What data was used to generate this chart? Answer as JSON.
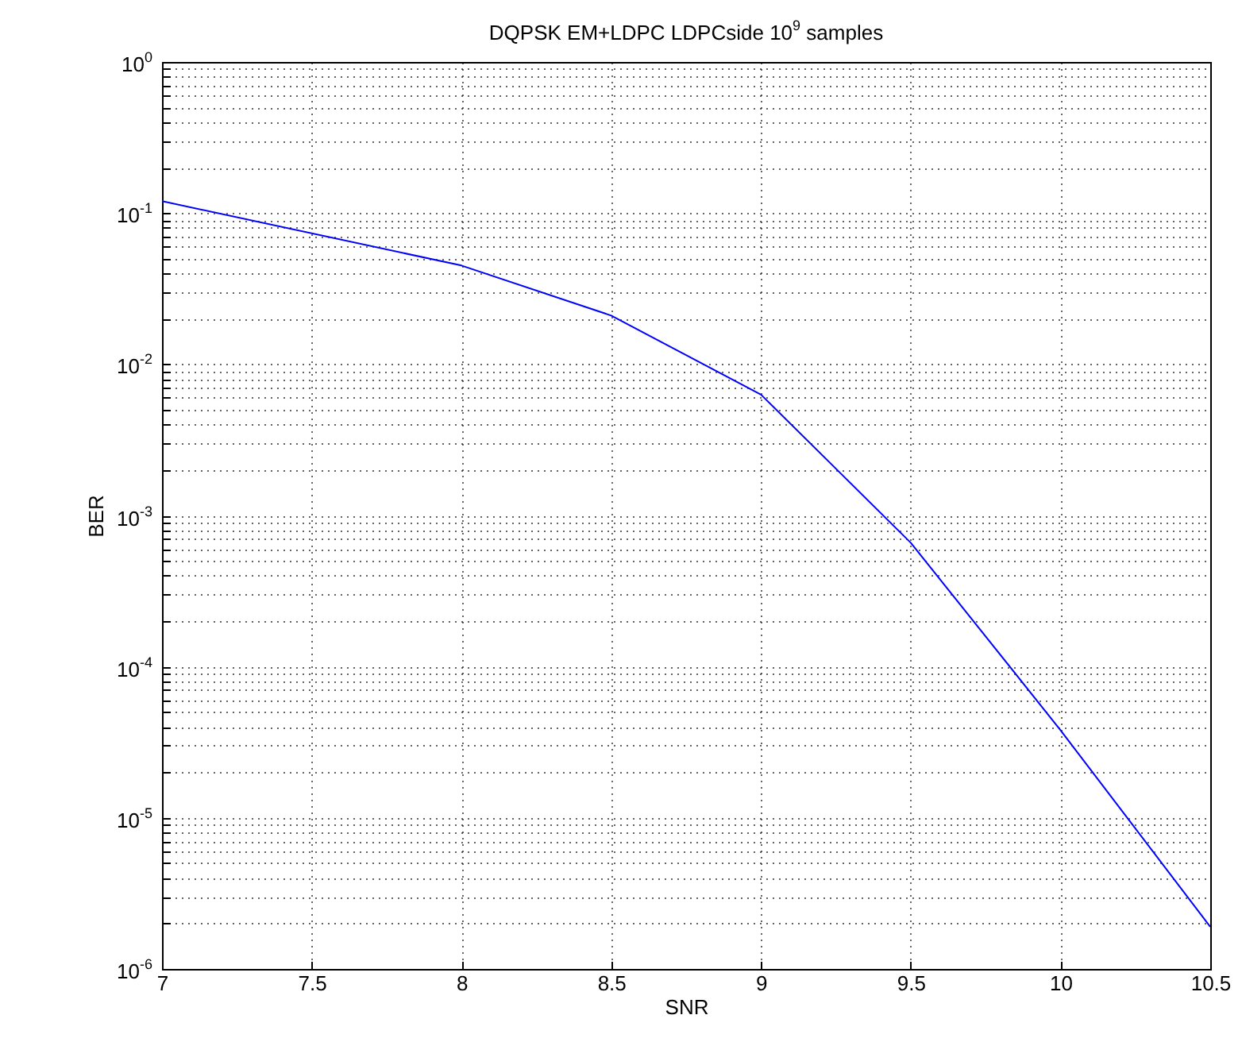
{
  "chart_data": {
    "type": "line",
    "title": "DQPSK EM+LDPC LDPCside 10$^{9}$ samples",
    "xlabel": "SNR",
    "ylabel": "BER",
    "x": [
      7,
      7.5,
      8,
      8.5,
      9,
      9.5,
      10,
      10.5
    ],
    "series": [
      {
        "color": "#0000ff",
        "values": [
          0.12,
          null,
          0.045,
          0.021,
          0.0063,
          0.00066,
          3.8e-05,
          1.9e-06
        ]
      }
    ],
    "log": true,
    "grid": true,
    "marker": "none",
    "line_style": "solid",
    "xlim": [
      7,
      10.5
    ],
    "xticks": [
      7,
      7.5,
      8,
      8.5,
      9,
      9.5,
      10,
      10.5
    ],
    "ylim": [
      1e-06,
      1
    ],
    "yticks": [
      {
        "value": 1e-06,
        "label": "10$^{-6}$"
      },
      {
        "value": 2e-06,
        "label": null
      },
      {
        "value": 3e-06,
        "label": null
      },
      {
        "value": 4e-06,
        "label": null
      },
      {
        "value": 5e-06,
        "label": null
      },
      {
        "value": 6e-06,
        "label": null
      },
      {
        "value": 7e-06,
        "label": null
      },
      {
        "value": 8e-06,
        "label": null
      },
      {
        "value": 9e-06,
        "label": null
      },
      {
        "value": 1e-05,
        "label": "10$^{-5}$"
      },
      {
        "value": 2e-05,
        "label": null
      },
      {
        "value": 3e-05,
        "label": null
      },
      {
        "value": 4e-05,
        "label": null
      },
      {
        "value": 5e-05,
        "label": null
      },
      {
        "value": 6e-05,
        "label": null
      },
      {
        "value": 7e-05,
        "label": null
      },
      {
        "value": 8e-05,
        "label": null
      },
      {
        "value": 9e-05,
        "label": null
      },
      {
        "value": 0.0001,
        "label": "10$^{-4}$"
      },
      {
        "value": 0.0002,
        "label": null
      },
      {
        "value": 0.0003,
        "label": null
      },
      {
        "value": 0.0004,
        "label": null
      },
      {
        "value": 0.0005,
        "label": null
      },
      {
        "value": 0.0006,
        "label": null
      },
      {
        "value": 0.0007,
        "label": null
      },
      {
        "value": 0.0008,
        "label": null
      },
      {
        "value": 0.0009,
        "label": null
      },
      {
        "value": 0.001,
        "label": "10$^{-3}$"
      },
      {
        "value": 0.002,
        "label": null
      },
      {
        "value": 0.003,
        "label": null
      },
      {
        "value": 0.004,
        "label": null
      },
      {
        "value": 0.005,
        "label": null
      },
      {
        "value": 0.006,
        "label": null
      },
      {
        "value": 0.007,
        "label": null
      },
      {
        "value": 0.008,
        "label": null
      },
      {
        "value": 0.009,
        "label": null
      },
      {
        "value": 0.01,
        "label": "10$^{-2}$"
      },
      {
        "value": 0.02,
        "label": null
      },
      {
        "value": 0.03,
        "label": null
      },
      {
        "value": 0.04,
        "label": null
      },
      {
        "value": 0.05,
        "label": null
      },
      {
        "value": 0.06,
        "label": null
      },
      {
        "value": 0.07,
        "label": null
      },
      {
        "value": 0.08,
        "label": null
      },
      {
        "value": 0.09,
        "label": null
      },
      {
        "value": 0.1,
        "label": "10$^{-1}$"
      },
      {
        "value": 0.2,
        "label": null
      },
      {
        "value": 0.3,
        "label": null
      },
      {
        "value": 0.4,
        "label": null
      },
      {
        "value": 0.5,
        "label": null
      },
      {
        "value": 0.6,
        "label": null
      },
      {
        "value": 0.7,
        "label": null
      },
      {
        "value": 0.8,
        "label": null
      },
      {
        "value": 0.9,
        "label": null
      },
      {
        "value": 1,
        "label": "10$^{0}$"
      }
    ]
  }
}
